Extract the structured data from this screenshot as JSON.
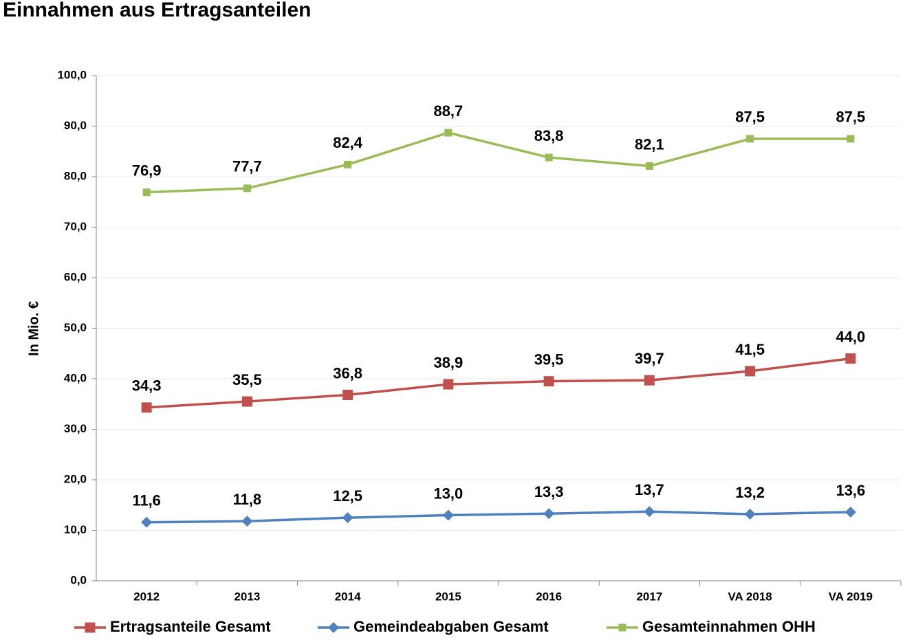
{
  "chart_data": {
    "type": "line",
    "title": "Einnahmen aus Ertragsanteilen",
    "y_label": "In Mio. €",
    "categories": [
      "2012",
      "2013",
      "2014",
      "2015",
      "2016",
      "2017",
      "VA 2018",
      "VA 2019"
    ],
    "series": [
      {
        "name": "Ertragsanteile Gesamt",
        "color": "#c0504d",
        "marker": "square",
        "values": [
          34.3,
          35.5,
          36.8,
          38.9,
          39.5,
          39.7,
          41.5,
          44.0
        ],
        "value_labels": [
          "34,3",
          "35,5",
          "36,8",
          "38,9",
          "39,5",
          "39,7",
          "41,5",
          "44,0"
        ]
      },
      {
        "name": "Gemeindeabgaben Gesamt",
        "color": "#4f81bd",
        "marker": "diamond",
        "values": [
          11.6,
          11.8,
          12.5,
          13.0,
          13.3,
          13.7,
          13.2,
          13.6
        ],
        "value_labels": [
          "11,6",
          "11,8",
          "12,5",
          "13,0",
          "13,3",
          "13,7",
          "13,2",
          "13,6"
        ]
      },
      {
        "name": "Gesamteinnahmen OHH",
        "color": "#9bbb59",
        "marker": "square-small",
        "values": [
          76.9,
          77.7,
          82.4,
          88.7,
          83.8,
          82.1,
          87.5,
          87.5
        ],
        "value_labels": [
          "76,9",
          "77,7",
          "82,4",
          "88,7",
          "83,8",
          "82,1",
          "87,5",
          "87,5"
        ]
      }
    ],
    "ylim": [
      0,
      100
    ],
    "yticks": [
      {
        "value": 0,
        "label": "0,0"
      },
      {
        "value": 10,
        "label": "10,0"
      },
      {
        "value": 20,
        "label": "20,0"
      },
      {
        "value": 30,
        "label": "30,0"
      },
      {
        "value": 40,
        "label": "40,0"
      },
      {
        "value": 50,
        "label": "50,0"
      },
      {
        "value": 60,
        "label": "60,0"
      },
      {
        "value": 70,
        "label": "70,0"
      },
      {
        "value": 80,
        "label": "80,0"
      },
      {
        "value": 90,
        "label": "90,0"
      },
      {
        "value": 100,
        "label": "100,0"
      }
    ],
    "grid": true,
    "legend": "bottom"
  }
}
